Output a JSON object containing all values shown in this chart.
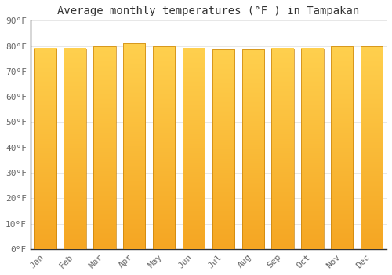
{
  "title": "Average monthly temperatures (°F ) in Tampakan",
  "months": [
    "Jan",
    "Feb",
    "Mar",
    "Apr",
    "May",
    "Jun",
    "Jul",
    "Aug",
    "Sep",
    "Oct",
    "Nov",
    "Dec"
  ],
  "values": [
    79,
    79,
    80,
    81,
    80,
    79,
    78.5,
    78.5,
    79,
    79,
    80,
    80
  ],
  "ylim": [
    0,
    90
  ],
  "yticks": [
    0,
    10,
    20,
    30,
    40,
    50,
    60,
    70,
    80,
    90
  ],
  "ytick_labels": [
    "0°F",
    "10°F",
    "20°F",
    "30°F",
    "40°F",
    "50°F",
    "60°F",
    "70°F",
    "80°F",
    "90°F"
  ],
  "bar_color_bottom": "#F5A623",
  "bar_color_top": "#FFD04E",
  "bar_edge_color": "#C8820A",
  "background_color": "#FFFFFF",
  "plot_bg_color": "#FFFFFF",
  "grid_color": "#DDDDDD",
  "title_fontsize": 10,
  "tick_fontsize": 8,
  "font_family": "monospace",
  "bar_width": 0.75
}
